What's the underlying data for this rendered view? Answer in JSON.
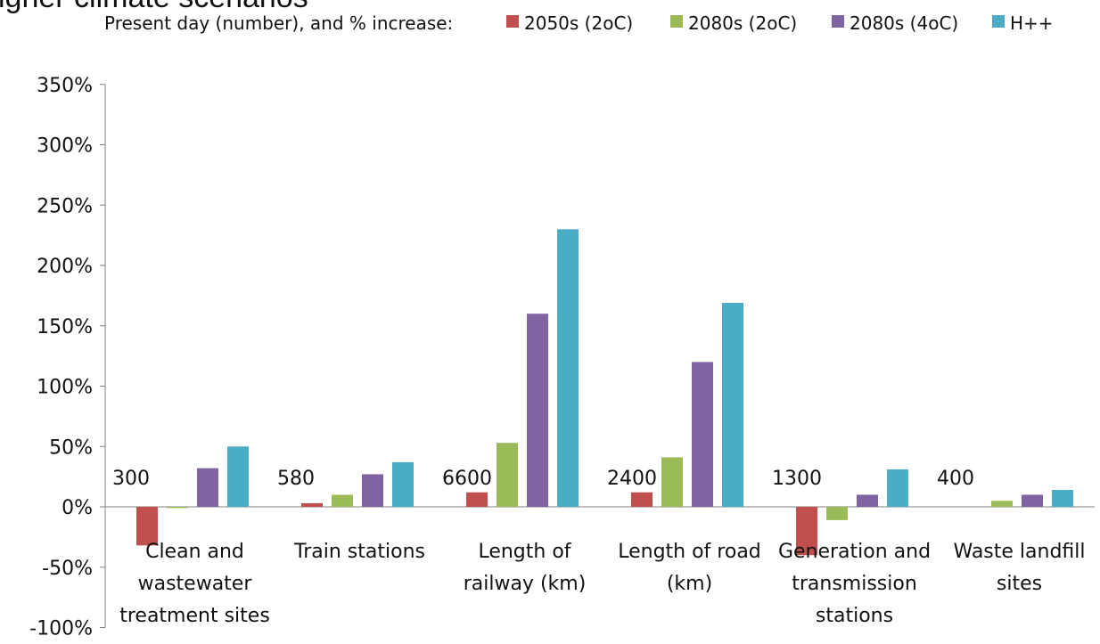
{
  "chart_data": {
    "type": "bar",
    "title": "igher climate scenarios",
    "legend_prefix": "Present day (number), and % increase:",
    "legend_position": "top",
    "grid": false,
    "ylim": [
      -100,
      350
    ],
    "y_ticks": [
      "350%",
      "300%",
      "250%",
      "200%",
      "150%",
      "100%",
      "50%",
      "0%",
      "-50%",
      "-100%"
    ],
    "y_tick_values": [
      350,
      300,
      250,
      200,
      150,
      100,
      50,
      0,
      -50,
      -100
    ],
    "categories": [
      [
        "Clean and",
        "wastewater",
        "treatment sites"
      ],
      [
        "Train stations"
      ],
      [
        "Length of",
        "railway (km)"
      ],
      [
        "Length of road",
        "(km)"
      ],
      [
        "Generation and",
        "transmission",
        "stations"
      ],
      [
        "Waste landfill",
        "sites"
      ]
    ],
    "present_day_numbers": [
      "300",
      "580",
      "6600",
      "2400",
      "1300",
      "400"
    ],
    "series": [
      {
        "name": "2050s (2oC)",
        "color": "#c0504d",
        "values": [
          -32,
          3,
          12,
          12,
          -40,
          0
        ]
      },
      {
        "name": "2080s (2oC)",
        "color": "#9bbb59",
        "values": [
          -1,
          10,
          53,
          41,
          -11,
          5
        ]
      },
      {
        "name": "2080s (4oC)",
        "color": "#8064a2",
        "values": [
          32,
          27,
          160,
          120,
          10,
          10
        ]
      },
      {
        "name": "H++",
        "color": "#4bacc6",
        "values": [
          50,
          37,
          230,
          169,
          31,
          14
        ]
      }
    ]
  }
}
